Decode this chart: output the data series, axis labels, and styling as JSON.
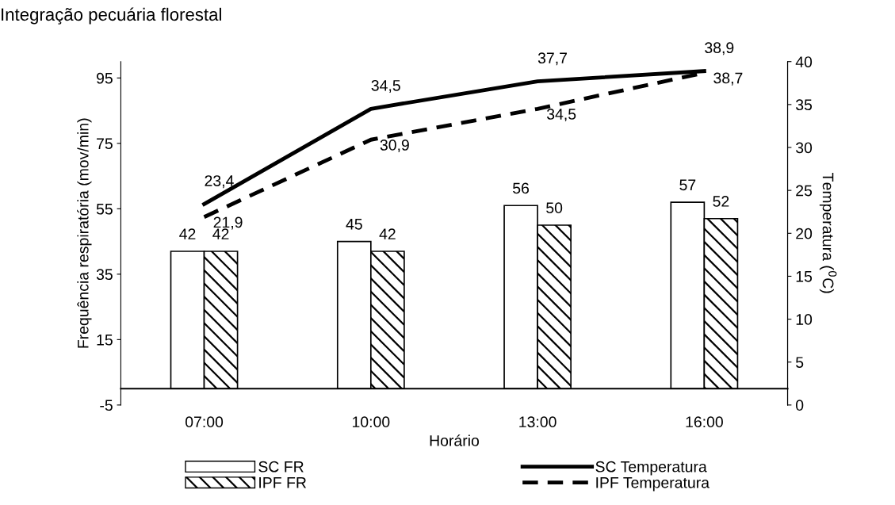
{
  "chart_data": {
    "type": "bar",
    "title": "Integração pecuária florestal",
    "xlabel": "Horário",
    "ylabel": "Frequência respiratória (mov/min)",
    "y2label": "Temperatura ($^{0}$C)",
    "categories": [
      "07:00",
      "10:00",
      "13:00",
      "16:00"
    ],
    "series": [
      {
        "name": "SC FR",
        "color": "#ffffff",
        "values": [
          42,
          45,
          56,
          57
        ],
        "value_labels": [
          "42",
          "45",
          "56",
          "57"
        ]
      },
      {
        "name": "IPF FR",
        "color": "#000000",
        "values": [
          42,
          42,
          50,
          52
        ],
        "value_labels": [
          "42",
          "42",
          "50",
          "52"
        ]
      },
      {
        "name": "SC Temperatura",
        "type": "line",
        "axis": "y2",
        "color": "#000000",
        "line_style": "solid",
        "values": [
          23.4,
          34.5,
          37.7,
          38.9
        ],
        "value_labels": [
          "23,4",
          "34,5",
          "37,7",
          "38,9"
        ]
      },
      {
        "name": "IPF Temperatura",
        "type": "line",
        "axis": "y2",
        "color": "#000000",
        "line_style": "dashed",
        "values": [
          21.9,
          30.9,
          34.5,
          38.7
        ],
        "value_labels": [
          "21,9",
          "30,9",
          "34,5",
          "38,7"
        ]
      }
    ],
    "ylim": [
      -5,
      100
    ],
    "yticks": [
      -5,
      15,
      35,
      55,
      75,
      95
    ],
    "y2lim": [
      0,
      40
    ],
    "y2ticks": [
      0,
      5,
      10,
      15,
      20,
      25,
      30,
      35,
      40
    ],
    "legend": "bottom",
    "grid": false
  }
}
